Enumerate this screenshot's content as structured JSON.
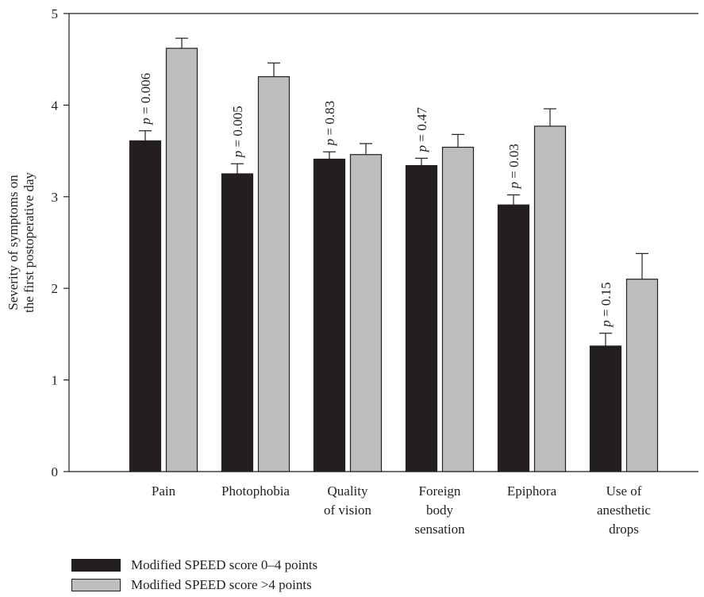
{
  "chart_data": {
    "type": "bar",
    "ylabel_lines": [
      "Severity of symptoms on",
      "the first postoperative day"
    ],
    "ylim": [
      0,
      5
    ],
    "yticks": [
      "0",
      "1",
      "2",
      "3",
      "4",
      "5"
    ],
    "categories": [
      [
        "Pain"
      ],
      [
        "Photophobia"
      ],
      [
        "Quality",
        "of vision"
      ],
      [
        "Foreign",
        "body",
        "sensation"
      ],
      [
        "Epiphora"
      ],
      [
        "Use of",
        "anesthetic",
        "drops"
      ]
    ],
    "series": [
      {
        "name": "Modified SPEED score 0–4 points",
        "color": "#231f20",
        "values": [
          3.61,
          3.25,
          3.41,
          3.34,
          2.91,
          1.37
        ],
        "errors": [
          0.11,
          0.11,
          0.08,
          0.08,
          0.11,
          0.14
        ]
      },
      {
        "name": "Modified SPEED score >4 points",
        "color": "#bcbec0",
        "values": [
          4.62,
          4.31,
          3.46,
          3.54,
          3.77,
          2.1
        ],
        "errors": [
          0.11,
          0.15,
          0.12,
          0.14,
          0.19,
          0.28
        ]
      }
    ],
    "annotations": [
      "p = 0.006",
      "p = 0.005",
      "p = 0.83",
      "p = 0.47",
      "p = 0.03",
      "p = 0.15"
    ],
    "grid": false,
    "legend_position": "bottom-left"
  }
}
